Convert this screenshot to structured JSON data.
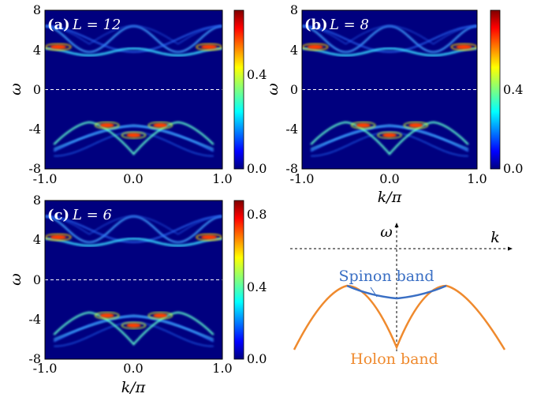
{
  "chart_data": [
    {
      "type": "heatmap",
      "panel_label": "(a)",
      "param_label": "L = 12",
      "x": {
        "label": "",
        "ticks": [
          "-1.0",
          "0.0",
          "1.0"
        ],
        "range": [
          -1.0,
          1.0
        ]
      },
      "y": {
        "label": "ω",
        "ticks": [
          "8",
          "4",
          "0",
          "-4",
          "-8"
        ],
        "range": [
          -8,
          8
        ]
      },
      "colorbar": {
        "ticks": [
          "0.4",
          "0.0"
        ],
        "range": [
          0.0,
          0.8
        ]
      },
      "zero_line": "dashed at ω = 0",
      "bands": {
        "upper_edge": {
          "k": [
            -1.0,
            -0.5,
            0.0,
            0.5,
            1.0
          ],
          "omega": [
            3.8,
            4.0,
            6.4,
            4.0,
            3.8
          ]
        },
        "lower_dome": {
          "k": [
            -0.85,
            -0.5,
            0.0,
            0.5,
            0.85
          ],
          "omega": [
            -6.0,
            -3.3,
            -5.6,
            -3.3,
            -6.0
          ]
        }
      }
    },
    {
      "type": "heatmap",
      "panel_label": "(b)",
      "param_label": "L = 8",
      "x": {
        "label": "k/π",
        "ticks": [
          "-1.0",
          "0.0",
          "1.0"
        ],
        "range": [
          -1.0,
          1.0
        ]
      },
      "y": {
        "label": "ω",
        "ticks": [
          "8",
          "4",
          "0",
          "-4",
          "-8"
        ],
        "range": [
          -8,
          8
        ]
      },
      "colorbar": {
        "ticks": [
          "0.4",
          "0.0"
        ],
        "range": [
          0.0,
          0.8
        ]
      },
      "zero_line": "dashed at ω = 0",
      "bands": {
        "upper_edge": {
          "k": [
            -1.0,
            -0.5,
            0.0,
            0.5,
            1.0
          ],
          "omega": [
            3.8,
            4.0,
            6.4,
            4.0,
            3.8
          ]
        },
        "lower_dome": {
          "k": [
            -0.85,
            -0.5,
            0.0,
            0.5,
            0.85
          ],
          "omega": [
            -6.0,
            -3.3,
            -5.6,
            -3.3,
            -6.0
          ]
        }
      }
    },
    {
      "type": "heatmap",
      "panel_label": "(c)",
      "param_label": "L = 6",
      "x": {
        "label": "k/π",
        "ticks": [
          "-1.0",
          "0.0",
          "1.0"
        ],
        "range": [
          -1.0,
          1.0
        ]
      },
      "y": {
        "label": "ω",
        "ticks": [
          "8",
          "4",
          "0",
          "-4",
          "-8"
        ],
        "range": [
          -8,
          8
        ]
      },
      "colorbar": {
        "ticks": [
          "0.8",
          "0.4",
          "0.0"
        ],
        "range": [
          0.0,
          0.9
        ]
      },
      "zero_line": "dashed at ω = 0",
      "bands": {
        "upper_edge": {
          "k": [
            -1.0,
            -0.5,
            0.0,
            0.5,
            1.0
          ],
          "omega": [
            3.8,
            4.0,
            6.4,
            4.0,
            3.8
          ]
        },
        "lower_dome": {
          "k": [
            -0.85,
            -0.5,
            0.0,
            0.5,
            0.85
          ],
          "omega": [
            -6.0,
            -3.3,
            -5.6,
            -3.3,
            -6.0
          ]
        }
      }
    },
    {
      "type": "schematic",
      "axis_labels": {
        "vertical": "ω",
        "horizontal": "k"
      },
      "curves": [
        {
          "name": "Spinon band",
          "color": "#3a6fc4"
        },
        {
          "name": "Holon band",
          "color": "#ef8a2e"
        }
      ]
    }
  ],
  "colors": {
    "background": "#00007f",
    "axes": "#000000"
  }
}
